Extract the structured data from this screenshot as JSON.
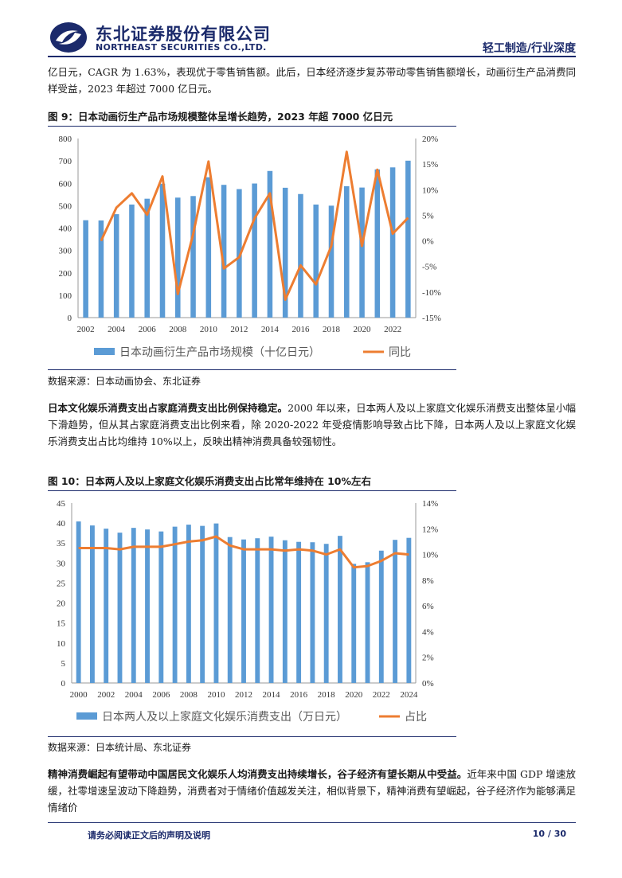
{
  "header": {
    "company_cn": "东北证券股份有限公司",
    "company_en": "NORTHEAST SECURITIES CO.,LTD.",
    "section": "轻工制造/行业深度"
  },
  "intro_paragraph": "亿日元，CAGR 为 1.63%，表现优于零售销售额。此后，日本经济逐步复苏带动零售销售额增长，动画衍生产品消费同样受益，2023 年超过 7000 亿日元。",
  "figure9": {
    "title": "图 9：日本动画衍生产品市场规模整体呈增长趋势，2023 年超 7000 亿日元",
    "source": "数据来源：日本动画协会、东北证券"
  },
  "para2": {
    "bold": "日本文化娱乐消费支出占家庭消费支出比例保持稳定。",
    "text": "2000 年以来，日本两人及以上家庭文化娱乐消费支出整体呈小幅下滑趋势，但从其占家庭消费支出比例来看，除 2020-2022 年受疫情影响导致占比下降，日本两人及以上家庭文化娱乐消费支出占比均维持 10%以上，反映出精神消费具备较强韧性。"
  },
  "figure10": {
    "title": "图 10：日本两人及以上家庭文化娱乐消费支出占比常年维持在 10%左右",
    "source": "数据来源：日本统计局、东北证券"
  },
  "para3": {
    "bold": "精神消费崛起有望带动中国居民文化娱乐人均消费支出持续增长，谷子经济有望长期从中受益。",
    "text": "近年来中国 GDP 增速放缓，社零增速呈波动下降趋势，消费者对于情绪价值越发关注，相似背景下，精神消费有望崛起，谷子经济作为能够满足情绪价"
  },
  "footer": {
    "disclaimer": "请务必阅读正文后的声明及说明",
    "page": "10 / 30"
  },
  "colors": {
    "bar": "#5b9bd5",
    "line": "#ed7d31",
    "brand": "#1b2a6b"
  },
  "chart_data": [
    {
      "type": "bar",
      "x": [
        2002,
        2003,
        2004,
        2005,
        2006,
        2007,
        2008,
        2009,
        2010,
        2011,
        2012,
        2013,
        2014,
        2015,
        2016,
        2017,
        2018,
        2019,
        2020,
        2021,
        2022,
        2023
      ],
      "x_tick_labels": [
        "2002",
        "2004",
        "2006",
        "2008",
        "2010",
        "2012",
        "2014",
        "2016",
        "2018",
        "2020",
        "2022"
      ],
      "series": [
        {
          "name": "日本动画衍生产品市场规模（十亿日元）",
          "type": "bar",
          "axis": "left",
          "values": [
            435,
            434,
            462,
            505,
            531,
            598,
            536,
            543,
            627,
            593,
            574,
            599,
            655,
            580,
            552,
            505,
            500,
            587,
            581,
            662,
            671,
            701
          ]
        },
        {
          "name": "同比",
          "type": "line",
          "axis": "right",
          "values": [
            null,
            0.0,
            6.5,
            9.3,
            5.1,
            12.6,
            -10.4,
            1.3,
            15.5,
            -5.4,
            -3.2,
            4.4,
            9.3,
            -11.5,
            -4.8,
            -8.5,
            -1.0,
            17.4,
            -1.0,
            13.9,
            1.4,
            4.5
          ]
        }
      ],
      "y_left": {
        "min": 0,
        "max": 800,
        "ticks": [
          "0",
          "100",
          "200",
          "300",
          "400",
          "500",
          "600",
          "700",
          "800"
        ]
      },
      "y_right": {
        "min": -15,
        "max": 20,
        "ticks": [
          "-15%",
          "-10%",
          "-5%",
          "0%",
          "5%",
          "10%",
          "15%",
          "20%"
        ]
      },
      "legend_position": "bottom"
    },
    {
      "type": "bar",
      "x": [
        2000,
        2001,
        2002,
        2003,
        2004,
        2005,
        2006,
        2007,
        2008,
        2009,
        2010,
        2011,
        2012,
        2013,
        2014,
        2015,
        2016,
        2017,
        2018,
        2019,
        2020,
        2021,
        2022,
        2023,
        2024
      ],
      "x_tick_labels": [
        "2000",
        "2002",
        "2004",
        "2006",
        "2008",
        "2010",
        "2012",
        "2014",
        "2016",
        "2018",
        "2020",
        "2022",
        "2024"
      ],
      "series": [
        {
          "name": "日本两人及以上家庭文化娱乐消费支出（万日元）",
          "type": "bar",
          "axis": "left",
          "values": [
            40.4,
            39.4,
            38.6,
            37.6,
            38.8,
            38.4,
            37.9,
            39.1,
            39.6,
            39.3,
            39.9,
            36.5,
            35.9,
            36.2,
            36.6,
            35.7,
            35.3,
            35.2,
            34.8,
            36.8,
            29.8,
            30.2,
            33.1,
            35.8,
            36.3
          ]
        },
        {
          "name": "占比",
          "type": "line",
          "axis": "right",
          "values": [
            10.5,
            10.5,
            10.5,
            10.4,
            10.6,
            10.6,
            10.6,
            10.8,
            11.0,
            11.1,
            11.4,
            10.7,
            10.4,
            10.4,
            10.4,
            10.3,
            10.4,
            10.3,
            10.0,
            10.4,
            9.0,
            9.1,
            9.5,
            10.1,
            10.0
          ]
        }
      ],
      "y_left": {
        "min": 0,
        "max": 45,
        "ticks": [
          "0",
          "5",
          "10",
          "15",
          "20",
          "25",
          "30",
          "35",
          "40",
          "45"
        ]
      },
      "y_right": {
        "min": 0,
        "max": 14,
        "ticks": [
          "0%",
          "2%",
          "4%",
          "6%",
          "8%",
          "10%",
          "12%",
          "14%"
        ]
      },
      "legend_position": "bottom"
    }
  ]
}
